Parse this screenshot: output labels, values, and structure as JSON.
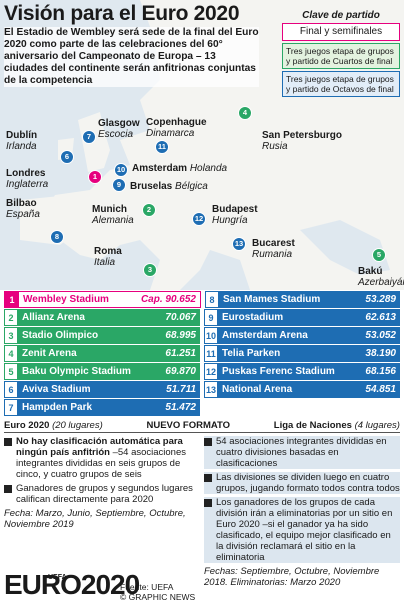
{
  "title": "Visión para el Euro 2020",
  "intro": "El Estadio de Wembley será sede de la final del Euro 2020 como parte de las celebraciones del 60° aniversario del Campeonato de Europa – 13 ciudades del continente serán anfitrionas conjuntas de la competencia",
  "key": {
    "title": "Clave de partido",
    "final": "Final y semifinales",
    "quarter": "Tres juegos etapa de grupos y partido de Cuartos de final",
    "round16": "Tres juegos etapa de grupos y partido de Octavos de final"
  },
  "cities": [
    {
      "n": "1",
      "name": "Londres",
      "country": "Inglaterra"
    },
    {
      "n": "2",
      "name": "Munich",
      "country": "Alemania"
    },
    {
      "n": "3",
      "name": "Roma",
      "country": "Italia"
    },
    {
      "n": "4",
      "name": "San Petersburgo",
      "country": "Rusia"
    },
    {
      "n": "5",
      "name": "Bakú",
      "country": "Azerbaiyán"
    },
    {
      "n": "6",
      "name": "Dublín",
      "country": "Irlanda"
    },
    {
      "n": "7",
      "name": "Glasgow",
      "country": "Escocia"
    },
    {
      "n": "8",
      "name": "Bilbao",
      "country": "España"
    },
    {
      "n": "9",
      "name": "Bruselas",
      "country": "Bélgica"
    },
    {
      "n": "10",
      "name": "Amsterdam",
      "country": "Holanda"
    },
    {
      "n": "11",
      "name": "Copenhague",
      "country": "Dinamarca"
    },
    {
      "n": "12",
      "name": "Budapest",
      "country": "Hungría"
    },
    {
      "n": "13",
      "name": "Bucarest",
      "country": "Rumania"
    }
  ],
  "stadiums": [
    {
      "n": "1",
      "name": "Wembley Stadium",
      "cap": "Cap. 90.652",
      "color": "pink"
    },
    {
      "n": "8",
      "name": "San Mames Stadium",
      "cap": "53.289",
      "color": "blue"
    },
    {
      "n": "2",
      "name": "Allianz Arena",
      "cap": "70.067",
      "color": "green"
    },
    {
      "n": "9",
      "name": "Eurostadium",
      "cap": "62.613",
      "color": "blue"
    },
    {
      "n": "3",
      "name": "Stadio Olimpico",
      "cap": "68.995",
      "color": "green"
    },
    {
      "n": "10",
      "name": "Amsterdam Arena",
      "cap": "53.052",
      "color": "blue"
    },
    {
      "n": "4",
      "name": "Zenit Arena",
      "cap": "61.251",
      "color": "green"
    },
    {
      "n": "11",
      "name": "Telia Parken",
      "cap": "38.190",
      "color": "blue"
    },
    {
      "n": "5",
      "name": "Baku Olympic Stadium",
      "cap": "69.870",
      "color": "green"
    },
    {
      "n": "12",
      "name": "Puskas Ferenc Stadium",
      "cap": "68.156",
      "color": "blue"
    },
    {
      "n": "6",
      "name": "Aviva Stadium",
      "cap": "51.711",
      "color": "blue"
    },
    {
      "n": "13",
      "name": "National Arena",
      "cap": "54.851",
      "color": "blue"
    },
    {
      "n": "7",
      "name": "Hampden Park",
      "cap": "51.472",
      "color": "blue"
    }
  ],
  "bottom": {
    "left_head": "Euro 2020",
    "left_head_sub": "(20 lugares)",
    "center_head": "NUEVO FORMATO",
    "right_head": "Liga de Naciones",
    "right_head_sub": "(4 lugares)",
    "left_b1_bold": "No hay clasificación automática para ningún país anfitrión",
    "left_b1_rest": " –54 asociaciones integrantes divididas en seis grupos de cinco, y cuatro grupos de seis",
    "left_b2": "Ganadores de grupos y segundos lugares califican directamente para 2020",
    "left_foot": "Fecha: Marzo, Junio, Septiembre, Octubre, Noviembre 2019",
    "right_b1": "54 asociaciones integrantes divididas en cuatro divisiones basadas en clasificaciones",
    "right_b2": "Las divisiones se dividen luego en cuatro grupos, jugando formato todos contra todos",
    "right_b3": "Los ganadores de los grupos de cada división irán a eliminatorias por un sitio en Euro 2020 –si el ganador ya ha sido clasificado, el equipo mejor clasificado en la división reclamará el sitio en la eliminatoria",
    "right_foot": "Fechas: Septiembre, Octubre, Noviembre 2018. Eliminatorias: Marzo 2020",
    "logo_small": "UEFA",
    "logo": "EURO2020",
    "source1": "Fuente: UEFA",
    "source2": "© GRAPHIC NEWS"
  },
  "colors": {
    "final": "#e6007e",
    "quarter": "#2aa766",
    "round16": "#1e6db3"
  }
}
